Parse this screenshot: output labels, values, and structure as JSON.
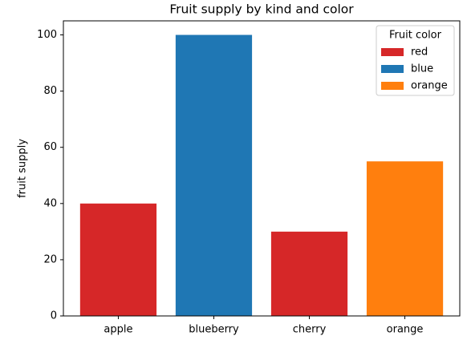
{
  "chart_data": {
    "type": "bar",
    "title": "Fruit supply by kind and color",
    "ylabel": "fruit supply",
    "categories": [
      "apple",
      "blueberry",
      "cherry",
      "orange"
    ],
    "values": [
      40,
      100,
      30,
      55
    ],
    "colors": [
      "#d62728",
      "#1f77b4",
      "#d62728",
      "#ff7f0e"
    ],
    "ylim": [
      0,
      105
    ],
    "yticks": [
      0,
      20,
      40,
      60,
      80,
      100
    ],
    "grid": false,
    "legend": {
      "title": "Fruit color",
      "loc": "upper right",
      "entries": [
        {
          "name": "red",
          "color": "#d62728"
        },
        {
          "name": "blue",
          "color": "#1f77b4"
        },
        {
          "name": "orange",
          "color": "#ff7f0e"
        }
      ]
    }
  }
}
